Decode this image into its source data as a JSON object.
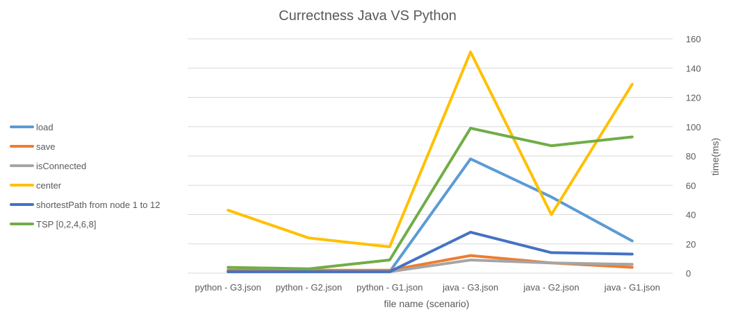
{
  "chart_data": {
    "type": "line",
    "title": "Currectness Java VS Python",
    "xlabel": "file name (scenario)",
    "ylabel": "time(ms)",
    "categories": [
      "python - G3.json",
      "python - G2.json",
      "python - G1.json",
      "java - G3.json",
      "java - G2.json",
      "java - G1.json"
    ],
    "ylim": [
      0,
      160
    ],
    "yticks": [
      0,
      20,
      40,
      60,
      80,
      100,
      120,
      140,
      160
    ],
    "y_axis_side": "right",
    "grid": true,
    "legend_position": "left",
    "series": [
      {
        "name": "load",
        "color": "#5b9bd5",
        "values": [
          1,
          1,
          1,
          78,
          52,
          22
        ]
      },
      {
        "name": "save",
        "color": "#ed7d31",
        "values": [
          2,
          2,
          2,
          12,
          7,
          4
        ]
      },
      {
        "name": "isConnected",
        "color": "#a5a5a5",
        "values": [
          1,
          1,
          1,
          9,
          7,
          6
        ]
      },
      {
        "name": "center",
        "color": "#ffc000",
        "values": [
          43,
          24,
          18,
          151,
          40,
          129
        ]
      },
      {
        "name": "shortestPath from node 1 to 12",
        "color": "#4472c4",
        "values": [
          1,
          1,
          1,
          28,
          14,
          13
        ]
      },
      {
        "name": "TSP [0,2,4,6,8]",
        "color": "#70ad47",
        "values": [
          4,
          3,
          9,
          99,
          87,
          93
        ]
      }
    ]
  }
}
